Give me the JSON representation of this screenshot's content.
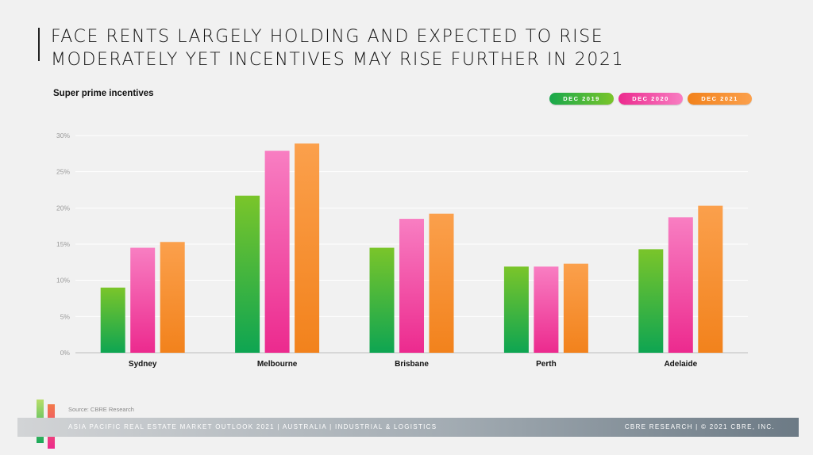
{
  "header": {
    "title_line1": "FACE RENTS LARGELY HOLDING AND EXPECTED TO RISE",
    "title_line2": "MODERATELY YET INCENTIVES MAY RISE FURTHER IN 2021"
  },
  "source": "Source: CBRE Research",
  "footer": {
    "left": "ASIA PACIFIC REAL ESTATE MARKET OUTLOOK 2021 | AUSTRALIA | INDUSTRIAL & LOGISTICS",
    "right": "CBRE RESEARCH | © 2021 CBRE, INC."
  },
  "chart_data": {
    "type": "bar",
    "title": "Super prime incentives",
    "xlabel": "",
    "ylabel": "",
    "ylim": [
      0,
      30
    ],
    "yticks": [
      0,
      5,
      10,
      15,
      20,
      25,
      30
    ],
    "ytick_labels": [
      "0%",
      "5%",
      "10%",
      "15%",
      "20%",
      "25%",
      "30%"
    ],
    "grid": true,
    "legend_position": "top-right",
    "categories": [
      "Sydney",
      "Melbourne",
      "Brisbane",
      "Perth",
      "Adelaide"
    ],
    "series": [
      {
        "name": "DEC 2019",
        "color": "#43b548",
        "gradient": [
          "#7ac52a",
          "#0ea552"
        ],
        "values": [
          9.0,
          21.7,
          14.5,
          11.9,
          14.3
        ]
      },
      {
        "name": "DEC 2020",
        "color": "#f040a5",
        "gradient": [
          "#f87ec2",
          "#ec2a8e"
        ],
        "values": [
          14.5,
          27.9,
          18.5,
          11.9,
          18.7
        ]
      },
      {
        "name": "DEC 2021",
        "color": "#f7902e",
        "gradient": [
          "#fba04c",
          "#f2821c"
        ],
        "values": [
          15.3,
          28.9,
          19.2,
          12.3,
          20.3
        ]
      }
    ]
  }
}
